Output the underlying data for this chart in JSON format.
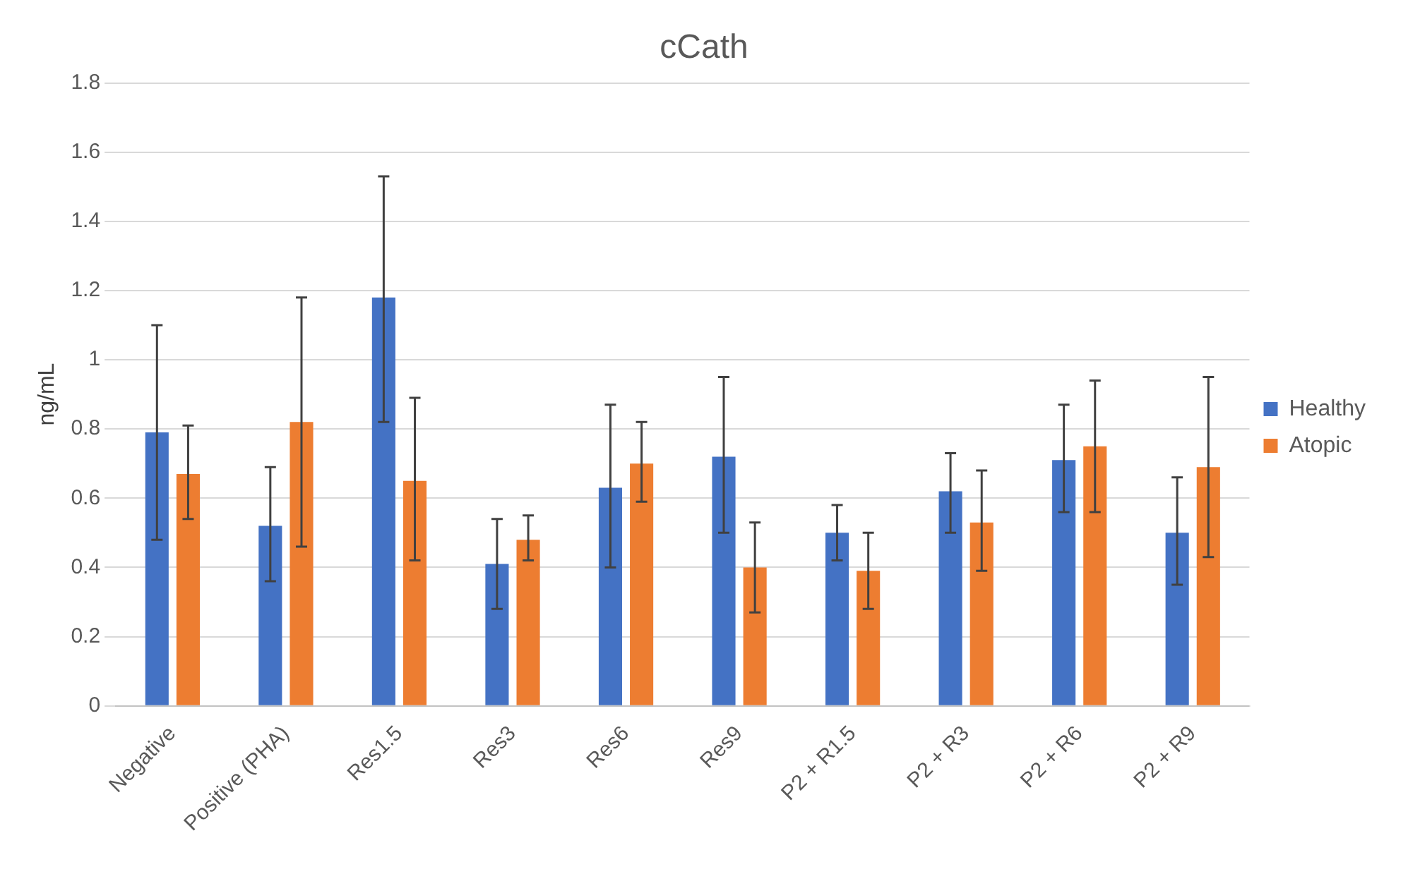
{
  "chart_data": {
    "type": "bar",
    "title": "cCath",
    "ylabel": "ng/mL",
    "categories": [
      "Negative",
      "Positive (PHA)",
      "Res1.5",
      "Res3",
      "Res6",
      "Res9",
      "P2 + R1.5",
      "P2 + R3",
      "P2 + R6",
      "P2 + R9"
    ],
    "series": [
      {
        "name": "Healthy",
        "color": "#4472c4",
        "values": [
          0.79,
          0.52,
          1.18,
          0.41,
          0.63,
          0.72,
          0.5,
          0.62,
          0.71,
          0.5
        ],
        "errors": [
          [
            0.48,
            1.1
          ],
          [
            0.36,
            0.69
          ],
          [
            0.82,
            1.53
          ],
          [
            0.28,
            0.54
          ],
          [
            0.4,
            0.87
          ],
          [
            0.5,
            0.95
          ],
          [
            0.42,
            0.58
          ],
          [
            0.5,
            0.73
          ],
          [
            0.56,
            0.87
          ],
          [
            0.35,
            0.66
          ]
        ]
      },
      {
        "name": "Atopic",
        "color": "#ed7d31",
        "values": [
          0.67,
          0.82,
          0.65,
          0.48,
          0.7,
          0.4,
          0.39,
          0.53,
          0.75,
          0.69
        ],
        "errors": [
          [
            0.54,
            0.81
          ],
          [
            0.46,
            1.18
          ],
          [
            0.42,
            0.89
          ],
          [
            0.42,
            0.55
          ],
          [
            0.59,
            0.82
          ],
          [
            0.27,
            0.53
          ],
          [
            0.28,
            0.5
          ],
          [
            0.39,
            0.68
          ],
          [
            0.56,
            0.94
          ],
          [
            0.43,
            0.95
          ]
        ]
      }
    ],
    "ylim": [
      0,
      1.8
    ],
    "yticks": [
      0,
      0.2,
      0.4,
      0.6,
      0.8,
      1,
      1.2,
      1.4,
      1.6,
      1.8
    ],
    "grid": "y",
    "legend": "right"
  }
}
